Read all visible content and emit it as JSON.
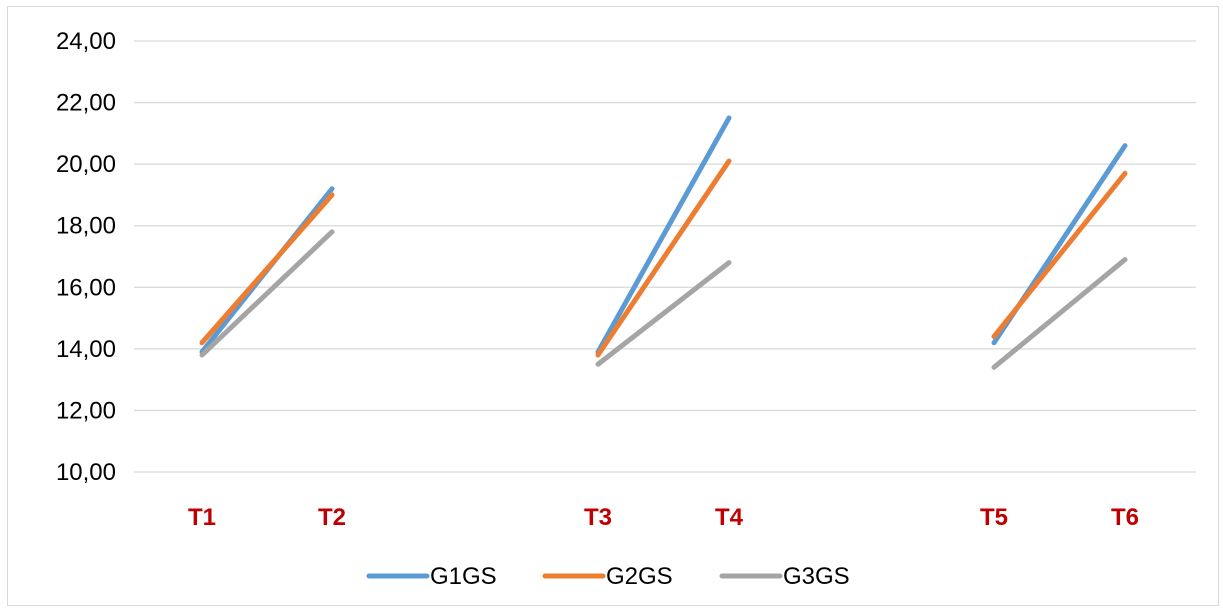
{
  "chart_data": {
    "type": "line",
    "title": "",
    "xlabel": "",
    "ylabel": "",
    "ylim": [
      10,
      24
    ],
    "y_ticks": [
      "10,00",
      "12,00",
      "14,00",
      "16,00",
      "18,00",
      "20,00",
      "22,00",
      "24,00"
    ],
    "y_tick_values": [
      10,
      12,
      14,
      16,
      18,
      20,
      22,
      24
    ],
    "categories": [
      "T1",
      "T2",
      "T3",
      "T4",
      "T5",
      "T6"
    ],
    "segments": [
      [
        "T1",
        "T2"
      ],
      [
        "T3",
        "T4"
      ],
      [
        "T5",
        "T6"
      ]
    ],
    "grid": true,
    "legend_position": "bottom",
    "tick_label_color": "#c00000",
    "series": [
      {
        "name": "G1GS",
        "color": "#5b9bd5",
        "values": [
          13.9,
          19.2,
          13.9,
          21.5,
          14.2,
          20.6
        ]
      },
      {
        "name": "G2GS",
        "color": "#ed7d31",
        "values": [
          14.2,
          19.0,
          13.8,
          20.1,
          14.4,
          19.7
        ]
      },
      {
        "name": "G3GS",
        "color": "#a5a5a5",
        "values": [
          13.8,
          17.8,
          13.5,
          16.8,
          13.4,
          16.9
        ]
      }
    ]
  }
}
